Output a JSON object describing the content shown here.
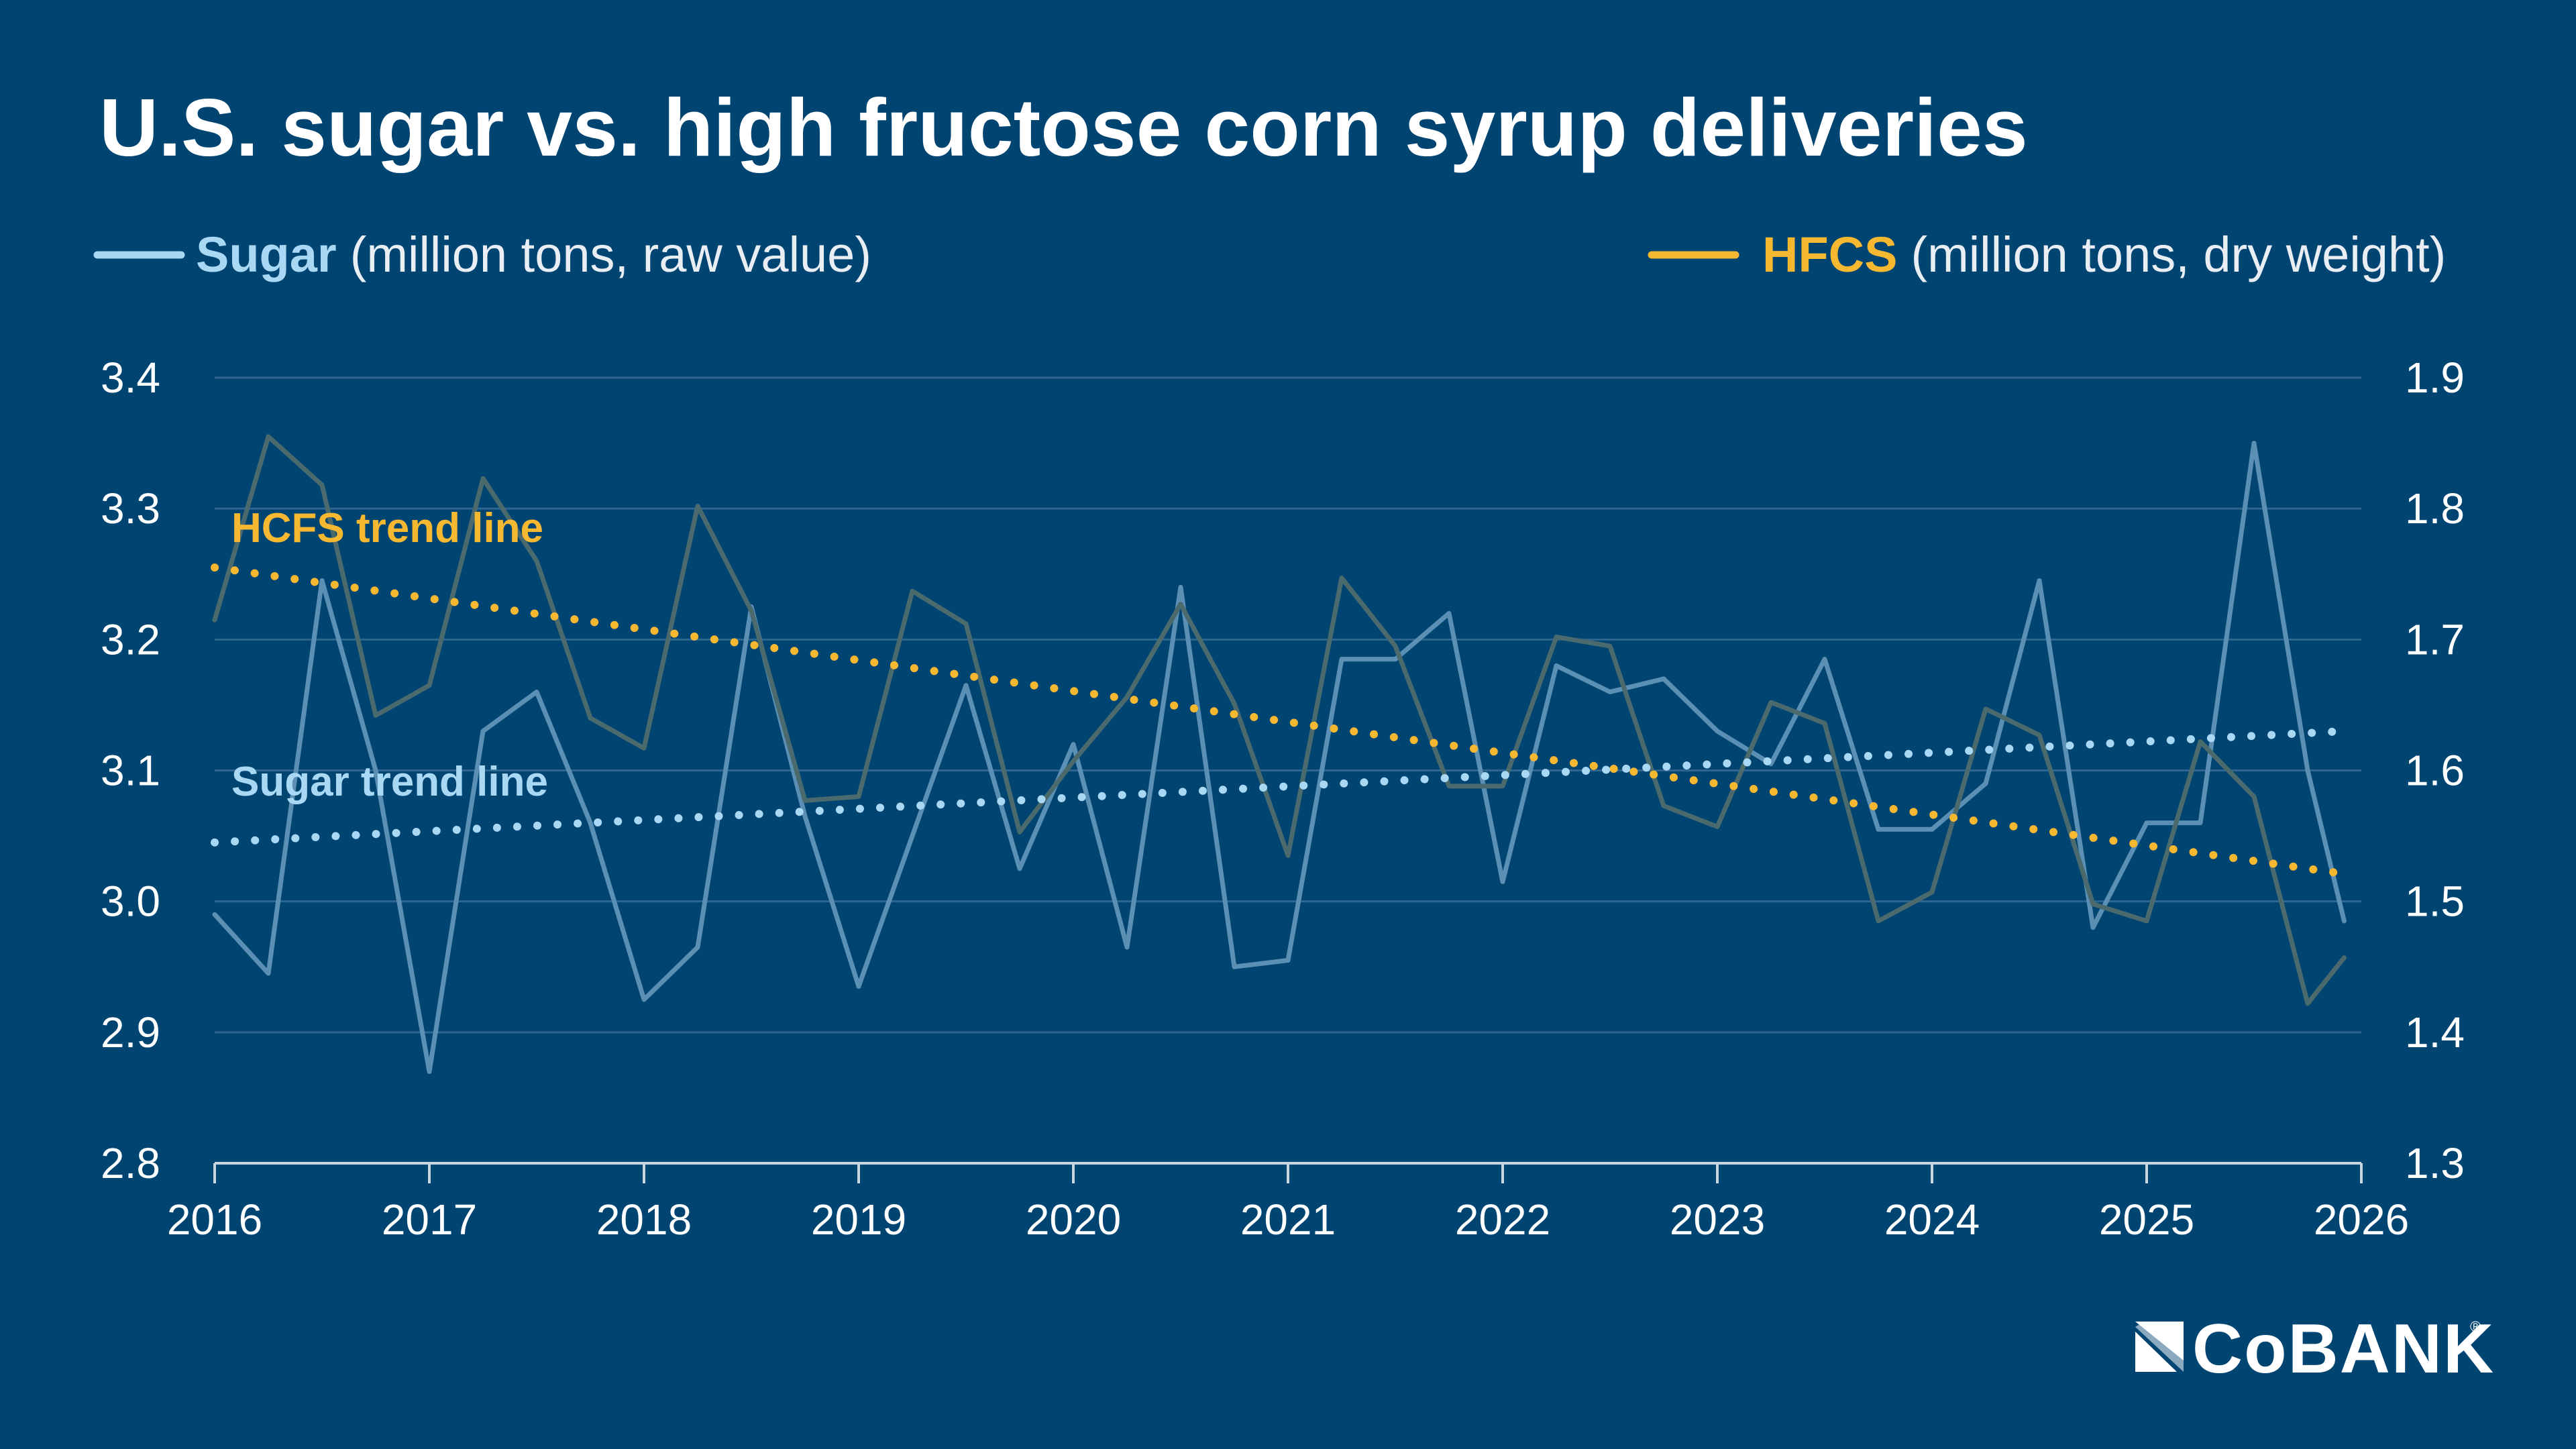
{
  "colors": {
    "background": "#004472",
    "sugar": "#a9d8f5",
    "sugar_line": "#5b8fb3",
    "hfcs": "#f6b731",
    "hfcs_line": "#4a6a6e",
    "grid": "#2f6690",
    "axis": "#c9d6e0",
    "text": "#ffffff"
  },
  "logo": {
    "text": "CoBANK",
    "icon": "cobank-logo-icon"
  },
  "chart_data": {
    "type": "line",
    "title": "U.S. sugar vs. high fructose corn syrup deliveries",
    "legend": {
      "placement": "top",
      "sugar": {
        "name": "Sugar",
        "unit": "(million tons, raw value)"
      },
      "hfcs": {
        "name": "HFCS",
        "unit": "(million tons, dry weight)"
      }
    },
    "x_ticks": [
      "2016",
      "2017",
      "2018",
      "2019",
      "2020",
      "2021",
      "2022",
      "2023",
      "2024",
      "2025",
      "2026"
    ],
    "xlim": [
      2016,
      2026
    ],
    "y_left": {
      "lim": [
        2.8,
        3.4
      ],
      "ticks": [
        "2.8",
        "2.9",
        "3.0",
        "3.1",
        "3.2",
        "3.3",
        "3.4"
      ]
    },
    "y_right": {
      "lim": [
        1.3,
        1.9
      ],
      "ticks": [
        "1.3",
        "1.4",
        "1.5",
        "1.6",
        "1.7",
        "1.8",
        "1.9"
      ]
    },
    "grid": true,
    "series": [
      {
        "name": "Sugar",
        "axis": "left",
        "x": [
          2016.0,
          2016.25,
          2016.5,
          2016.75,
          2017.0,
          2017.25,
          2017.5,
          2017.75,
          2018.0,
          2018.25,
          2018.5,
          2018.75,
          2019.0,
          2019.25,
          2019.5,
          2019.75,
          2020.0,
          2020.25,
          2020.5,
          2020.75,
          2021.0,
          2021.25,
          2021.5,
          2021.75,
          2022.0,
          2022.25,
          2022.5,
          2022.75,
          2023.0,
          2023.25,
          2023.5,
          2023.75,
          2024.0,
          2024.25,
          2024.5,
          2024.75,
          2025.0,
          2025.25,
          2025.5,
          2025.75,
          2025.92
        ],
        "values": [
          2.99,
          2.945,
          3.245,
          3.1,
          2.87,
          3.13,
          3.16,
          3.06,
          2.925,
          2.965,
          3.225,
          3.065,
          2.935,
          3.05,
          3.165,
          3.025,
          3.12,
          2.965,
          3.24,
          2.95,
          2.955,
          3.185,
          3.185,
          3.22,
          3.015,
          3.18,
          3.16,
          3.17,
          3.13,
          3.105,
          3.185,
          3.055,
          3.055,
          3.09,
          3.245,
          2.98,
          3.06,
          3.06,
          3.35,
          3.1,
          2.985
        ]
      },
      {
        "name": "HFCS",
        "axis": "right",
        "x": [
          2016.0,
          2016.25,
          2016.5,
          2016.75,
          2017.0,
          2017.25,
          2017.5,
          2017.75,
          2018.0,
          2018.25,
          2018.5,
          2018.75,
          2019.0,
          2019.25,
          2019.5,
          2019.75,
          2020.0,
          2020.25,
          2020.5,
          2020.75,
          2021.0,
          2021.25,
          2021.5,
          2021.75,
          2022.0,
          2022.25,
          2022.5,
          2022.75,
          2023.0,
          2023.25,
          2023.5,
          2023.75,
          2024.0,
          2024.25,
          2024.5,
          2024.75,
          2025.0,
          2025.25,
          2025.5,
          2025.75,
          2025.92
        ],
        "values": [
          1.715,
          1.855,
          1.818,
          1.642,
          1.665,
          1.823,
          1.76,
          1.64,
          1.617,
          1.802,
          1.722,
          1.577,
          1.58,
          1.737,
          1.712,
          1.553,
          1.607,
          1.656,
          1.727,
          1.651,
          1.535,
          1.747,
          1.695,
          1.588,
          1.588,
          1.702,
          1.695,
          1.573,
          1.557,
          1.652,
          1.636,
          1.485,
          1.507,
          1.647,
          1.627,
          1.498,
          1.485,
          1.622,
          1.58,
          1.422,
          1.457
        ]
      }
    ],
    "trend_lines": [
      {
        "label": "HCFS trend line",
        "axis": "right",
        "x": [
          2016.0,
          2025.92
        ],
        "values": [
          1.755,
          1.521
        ]
      },
      {
        "label": "Sugar trend line",
        "axis": "left",
        "x": [
          2016.0,
          2025.92
        ],
        "values": [
          3.045,
          3.13
        ]
      }
    ]
  }
}
